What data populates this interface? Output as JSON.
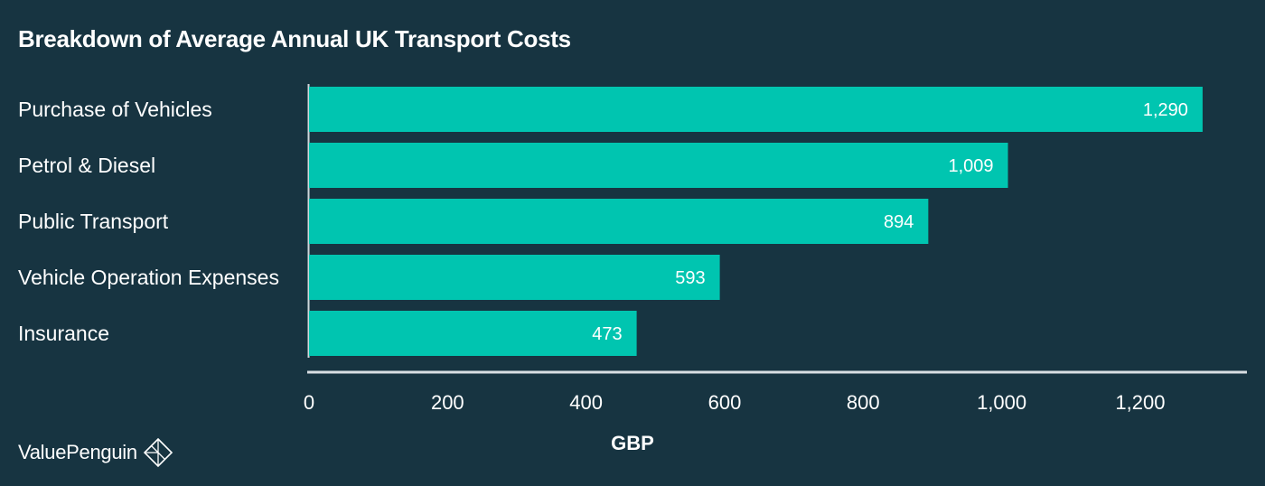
{
  "chart_data": {
    "type": "bar",
    "orientation": "horizontal",
    "title": "Breakdown of Average Annual UK Transport Costs",
    "xlabel": "GBP",
    "ylabel": "",
    "categories": [
      "Purchase of Vehicles",
      "Petrol & Diesel",
      "Public Transport",
      "Vehicle Operation Expenses",
      "Insurance"
    ],
    "values": [
      1290,
      1009,
      894,
      593,
      473
    ],
    "value_labels": [
      "1,290",
      "1,009",
      "894",
      "593",
      "473"
    ],
    "xlim": [
      0,
      1354
    ],
    "x_ticks": [
      0,
      200,
      400,
      600,
      800,
      1000,
      1200
    ],
    "x_tick_labels": [
      "0",
      "200",
      "400",
      "600",
      "800",
      "1,000",
      "1,200"
    ],
    "grid": false,
    "legend": "none",
    "colors": {
      "background": "#173441",
      "bar": "#00c5b0",
      "text": "#ffffff",
      "axis": "#ffffff"
    }
  },
  "footer": {
    "brand_name": "ValuePenguin",
    "brand_icon": "penguin-diamond-logo-icon"
  }
}
